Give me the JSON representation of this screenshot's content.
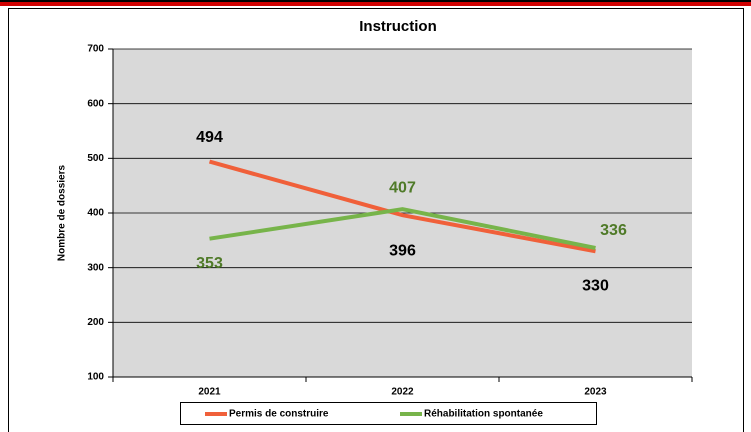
{
  "chart_data": {
    "type": "line",
    "title": "Instruction",
    "y_label": "Nombre de dossiers",
    "categories": [
      "2021",
      "2022",
      "2023"
    ],
    "series": [
      {
        "name": "Permis de construire",
        "color": "#f0603a",
        "label_color": "#000000",
        "values": [
          494,
          396,
          330
        ]
      },
      {
        "name": "Réhabilitation spontanée",
        "color": "#77b44a",
        "label_color": "#4f7a28",
        "values": [
          353,
          407,
          336
        ]
      }
    ],
    "ylim": [
      100,
      700
    ],
    "yticks": [
      100,
      200,
      300,
      400,
      500,
      600,
      700
    ],
    "grid": true,
    "legend": "bottom"
  }
}
